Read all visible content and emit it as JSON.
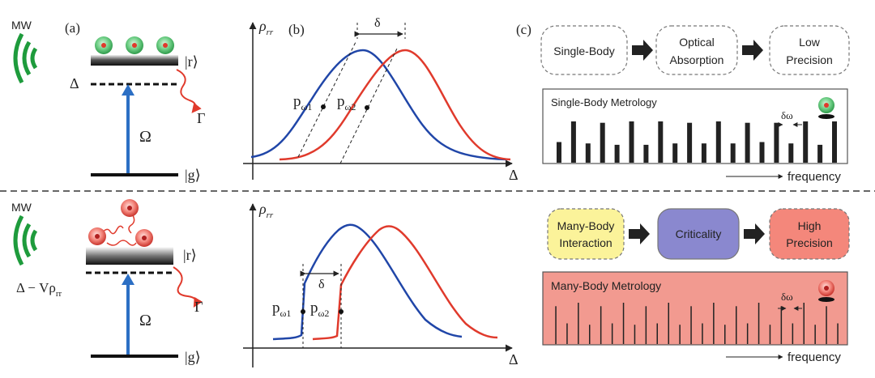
{
  "panels": {
    "a": "(a)",
    "b": "(b)",
    "c": "(c)"
  },
  "levels": {
    "mw": "MW",
    "excited": "|r⟩",
    "ground": "|g⟩",
    "rabi": "Ω",
    "decay": "Γ",
    "detuning_top": "Δ",
    "detuning_bottom": "Δ − Vρ",
    "detuning_bottom_sub": "rr"
  },
  "plot_top": {
    "ylabel": "ρ",
    "ylabel_sub": "rr",
    "xlabel": "Δ",
    "shift_label": "δ",
    "point1": "p",
    "point1_sub": "ω1",
    "point2": "p",
    "point2_sub": "ω2"
  },
  "plot_bottom": {
    "ylabel": "ρ",
    "ylabel_sub": "rr",
    "xlabel": "Δ",
    "shift_label": "δ",
    "point1": "p",
    "point1_sub": "ω1",
    "point2": "p",
    "point2_sub": "ω2"
  },
  "flow_top": [
    "Single-Body",
    "Optical Absorption",
    "Low Precision"
  ],
  "flow_bottom": [
    "Many-Body Interaction",
    "Criticality",
    "High Precision"
  ],
  "spectrum_top": {
    "title": "Single-Body Metrology",
    "delta_label": "δω",
    "axis_label": "frequency",
    "bars": [
      0.3,
      0.6,
      0.28,
      0.58,
      0.26,
      0.6,
      0.26,
      0.6,
      0.28,
      0.58,
      0.28,
      0.6,
      0.28,
      0.58,
      0.3,
      0.58,
      0.28,
      0.6,
      0.26,
      0.6
    ]
  },
  "spectrum_bottom": {
    "title": "Many-Body Metrology",
    "delta_label": "δω",
    "axis_label": "frequency",
    "bars": [
      0.55,
      0.3,
      0.6,
      0.28,
      0.55,
      0.3,
      0.6,
      0.28,
      0.55,
      0.3,
      0.6,
      0.28,
      0.55,
      0.3,
      0.6,
      0.28,
      0.55,
      0.3,
      0.6,
      0.28,
      0.55,
      0.3,
      0.6,
      0.28,
      0.55,
      0.3
    ]
  },
  "colors": {
    "mw_green": "#1e9b3c",
    "blue_curve": "#2046a8",
    "red_curve": "#e03a2c",
    "yellow_box": "#fbf39a",
    "purple_box": "#8a88cf",
    "pink_box": "#f4877b",
    "pink_panel": "#f29a90"
  }
}
